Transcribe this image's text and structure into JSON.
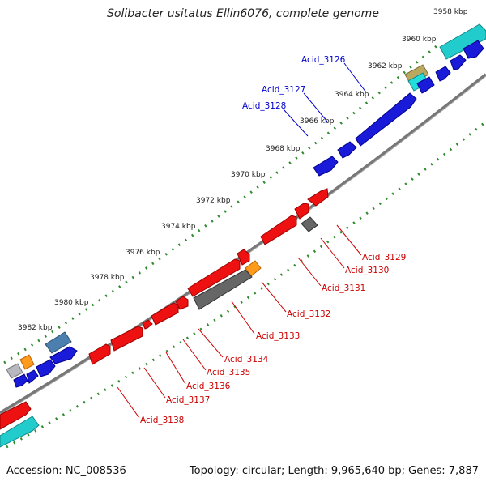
{
  "title": "Solibacter usitatus Ellin6076, complete genome",
  "footer": {
    "accession": "Accession: NC_008536",
    "topology": "Topology: circular; Length: 9,965,640 bp; Genes: 7,887"
  },
  "ticks": [
    "3958 kbp",
    "3960 kbp",
    "3962 kbp",
    "3964 kbp",
    "3966 kbp",
    "3968 kbp",
    "3970 kbp",
    "3972 kbp",
    "3974 kbp",
    "3976 kbp",
    "3978 kbp",
    "3980 kbp",
    "3982 kbp"
  ],
  "labels_forward": [
    "Acid_3126",
    "Acid_3127",
    "Acid_3128"
  ],
  "labels_reverse": [
    "Acid_3129",
    "Acid_3130",
    "Acid_3131",
    "Acid_3132",
    "Acid_3133",
    "Acid_3134",
    "Acid_3135",
    "Acid_3136",
    "Acid_3137",
    "Acid_3138"
  ],
  "colors": {
    "forward_label": "#0000cc",
    "reverse_label": "#cc0000",
    "backbone": "#777777",
    "tick_dots": "#2e8b2e"
  },
  "legend_notes": {
    "cds_forward": "blue",
    "cds_reverse": "red",
    "other_features": [
      "cyan",
      "gray",
      "orange",
      "tan",
      "steelblue"
    ]
  }
}
